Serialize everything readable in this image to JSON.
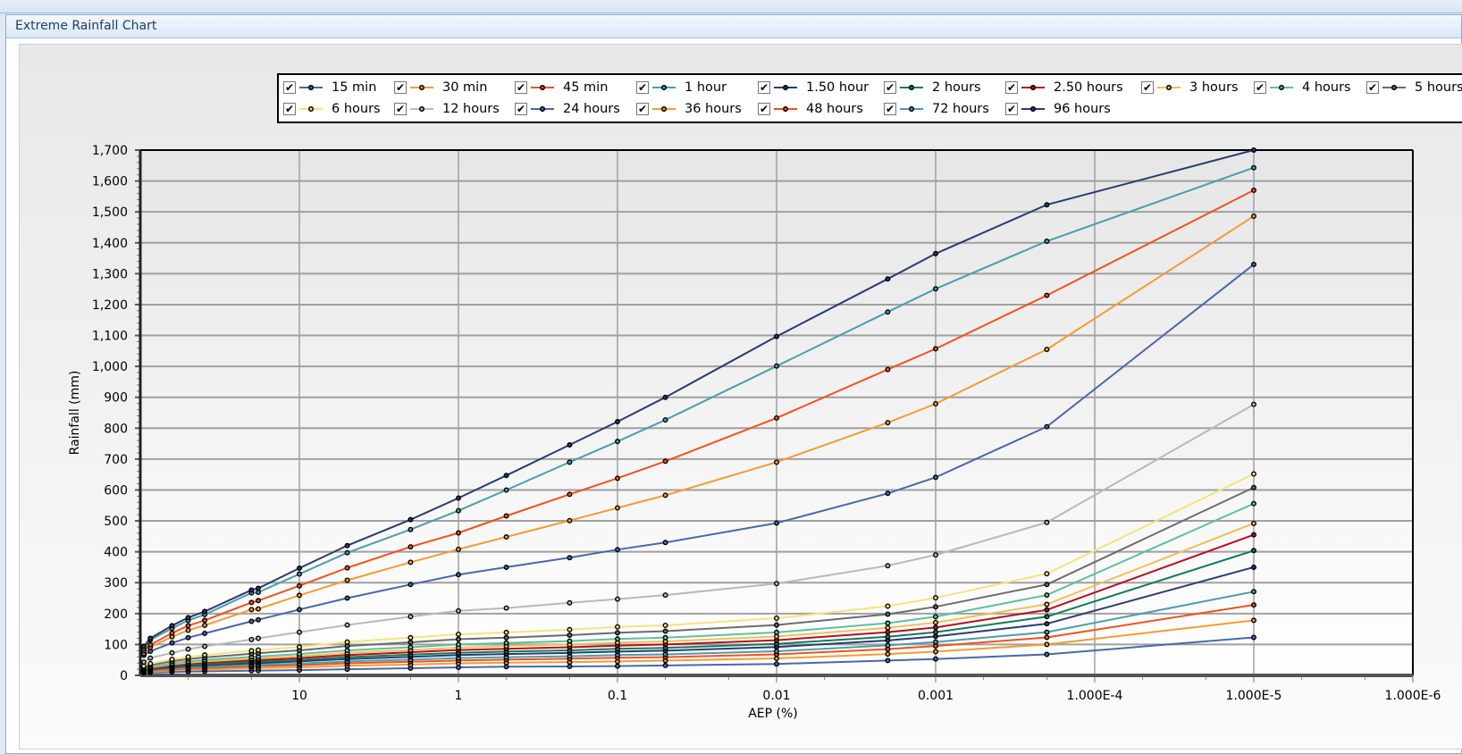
{
  "window": {
    "title": "Extreme Rainfall Chart"
  },
  "chart_data": {
    "type": "line",
    "xlabel": "AEP (%)",
    "ylabel": "Rainfall (mm)",
    "x_scale": "log-reversed",
    "xlim": [
      100,
      1e-06
    ],
    "ylim": [
      0,
      1700
    ],
    "x_tick_labels": [
      "10",
      "1",
      "0.1",
      "0.01",
      "0.001",
      "1.000E-4",
      "1.000E-5",
      "1.000E-6"
    ],
    "x_tick_values": [
      10,
      1,
      0.1,
      0.01,
      0.001,
      0.0001,
      1e-05,
      1e-06
    ],
    "y_ticks": [
      0,
      100,
      200,
      300,
      400,
      500,
      600,
      700,
      800,
      900,
      1000,
      1100,
      1200,
      1300,
      1400,
      1500,
      1600,
      1700
    ],
    "y_tick_labels": [
      "0",
      "100",
      "200",
      "300",
      "400",
      "500",
      "600",
      "700",
      "800",
      "900",
      "1,000",
      "1,100",
      "1,200",
      "1,300",
      "1,400",
      "1,500",
      "1,600",
      "1,700"
    ],
    "grid": true,
    "legend": "top",
    "x": [
      95.02,
      86.47,
      63.21,
      50,
      39.35,
      20,
      18.13,
      10,
      5,
      2,
      1,
      0.5,
      0.2,
      0.1,
      0.05,
      0.01,
      0.002,
      0.001,
      0.0002,
      1e-05
    ],
    "series": [
      {
        "name": "15 min",
        "checked": true,
        "color": "#4a68a8",
        "values": [
          8,
          9,
          11,
          12,
          13,
          15,
          15.5,
          17,
          20,
          23,
          26,
          28,
          29,
          30,
          32,
          37,
          48,
          53,
          68,
          123
        ]
      },
      {
        "name": "30 min",
        "checked": true,
        "color": "#f39c34",
        "values": [
          11,
          12,
          16,
          18,
          19,
          23,
          24,
          26,
          31,
          35,
          39,
          41,
          43,
          45,
          48,
          55,
          69,
          77,
          100,
          178
        ]
      },
      {
        "name": "45 min",
        "checked": true,
        "color": "#f0521e",
        "values": [
          13,
          15,
          20,
          22,
          24,
          29,
          30,
          33,
          39,
          44,
          48,
          51,
          54,
          57,
          59,
          68,
          85,
          95,
          123,
          228
        ]
      },
      {
        "name": "1 hour",
        "checked": true,
        "color": "#4b9dab",
        "values": [
          14,
          17,
          23,
          25,
          28,
          33,
          34,
          38,
          45,
          51,
          56,
          59,
          62,
          66,
          68,
          78,
          97,
          108,
          140,
          271
        ]
      },
      {
        "name": "1.50 hour",
        "checked": true,
        "color": "#283c6e",
        "values": [
          16,
          20,
          26,
          30,
          33,
          39,
          40,
          45,
          53,
          60,
          66,
          69,
          73,
          77,
          80,
          92,
          113,
          126,
          167,
          350
        ]
      },
      {
        "name": "2 hours",
        "checked": true,
        "color": "#137a58",
        "values": [
          18,
          22,
          29,
          33,
          36,
          44,
          45,
          50,
          59,
          67,
          73,
          77,
          81,
          86,
          89,
          102,
          125,
          140,
          190,
          404
        ]
      },
      {
        "name": "2.50 hours",
        "checked": true,
        "color": "#b40f1e",
        "values": [
          19,
          24,
          32,
          37,
          41,
          49,
          50,
          56,
          66,
          75,
          82,
          86,
          91,
          96,
          100,
          114,
          140,
          155,
          212,
          455
        ]
      },
      {
        "name": "3 hours",
        "checked": true,
        "color": "#f2bf5a",
        "values": [
          21,
          26,
          36,
          41,
          45,
          54,
          55,
          62,
          73,
          82,
          90,
          95,
          100,
          106,
          110,
          126,
          154,
          171,
          230,
          492
        ]
      },
      {
        "name": "4 hours",
        "checked": true,
        "color": "#5dc09e",
        "values": [
          23,
          29,
          39,
          45,
          50,
          60,
          61,
          69,
          81,
          91,
          100,
          105,
          111,
          118,
          122,
          139,
          169,
          190,
          260,
          556
        ]
      },
      {
        "name": "5 hours",
        "checked": true,
        "color": "#6b6b6b",
        "values": [
          27,
          34,
          46,
          53,
          58,
          70,
          72,
          81,
          95,
          107,
          117,
          122,
          130,
          138,
          143,
          163,
          198,
          222,
          294,
          608
        ]
      },
      {
        "name": "6 hours",
        "checked": true,
        "color": "#f3e47e",
        "values": [
          30,
          38,
          52,
          60,
          66,
          80,
          82,
          92,
          108,
          122,
          133,
          139,
          148,
          157,
          162,
          185,
          224,
          251,
          329,
          652
        ]
      },
      {
        "name": "12 hours",
        "checked": true,
        "color": "#b9b9b9",
        "values": [
          43,
          56,
          73,
          85,
          94,
          116,
          120,
          140,
          163,
          190,
          209,
          218,
          235,
          247,
          260,
          297,
          355,
          390,
          495,
          877
        ]
      },
      {
        "name": "24 hours",
        "checked": true,
        "color": "#4a68a8",
        "values": [
          65,
          78,
          105,
          122,
          136,
          175,
          180,
          213,
          250,
          294,
          326,
          350,
          381,
          407,
          430,
          493,
          589,
          641,
          805,
          1330
        ]
      },
      {
        "name": "36 hours",
        "checked": true,
        "color": "#f39c34",
        "values": [
          71,
          91,
          125,
          146,
          162,
          213,
          215,
          259,
          308,
          366,
          408,
          448,
          501,
          542,
          583,
          690,
          818,
          879,
          1055,
          1486
        ]
      },
      {
        "name": "48 hours",
        "checked": true,
        "color": "#f0521e",
        "values": [
          79,
          99,
          137,
          161,
          178,
          236,
          242,
          290,
          348,
          416,
          461,
          516,
          586,
          638,
          693,
          833,
          990,
          1057,
          1230,
          1570
        ]
      },
      {
        "name": "72 hours",
        "checked": true,
        "color": "#4b9dab",
        "values": [
          86,
          115,
          152,
          178,
          197,
          267,
          269,
          328,
          397,
          472,
          533,
          600,
          690,
          757,
          827,
          1001,
          1176,
          1251,
          1405,
          1643
        ]
      },
      {
        "name": "96 hours",
        "checked": true,
        "color": "#283c6e",
        "values": [
          94,
          120,
          161,
          187,
          207,
          276,
          282,
          347,
          420,
          504,
          574,
          647,
          746,
          821,
          900,
          1097,
          1283,
          1365,
          1523,
          1700
        ]
      }
    ]
  }
}
